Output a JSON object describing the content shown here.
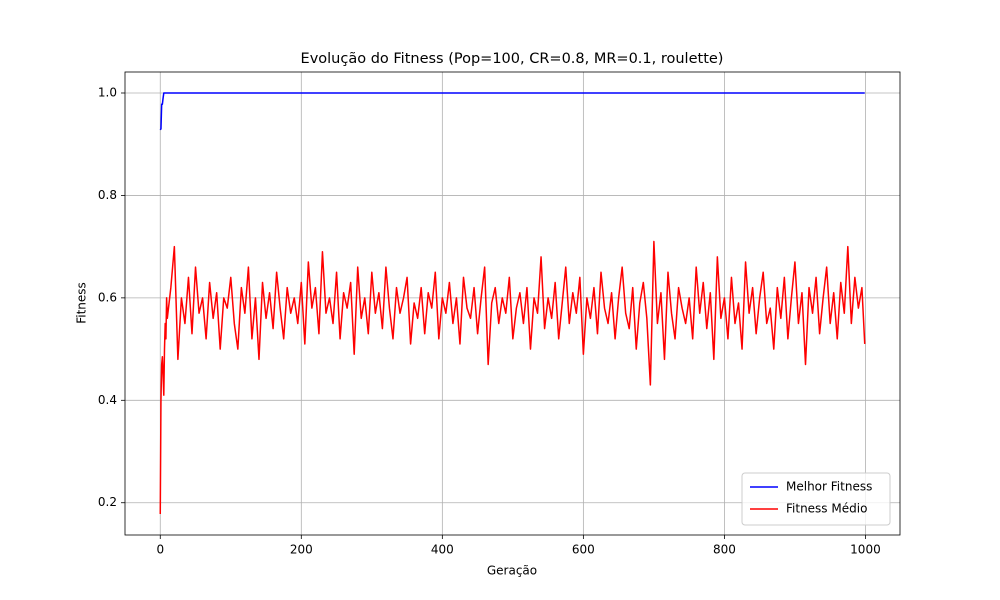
{
  "chart_data": {
    "type": "line",
    "title": "Evolução do Fitness (Pop=100, CR=0.8, MR=0.1, roulette)",
    "xlabel": "Geração",
    "ylabel": "Fitness",
    "xlim": [
      -50,
      1049
    ],
    "ylim": [
      0.137,
      1.041
    ],
    "xticks": [
      0,
      200,
      400,
      600,
      800,
      1000
    ],
    "yticks": [
      0.2,
      0.4,
      0.6,
      0.8,
      {
        "value": 1,
        "label": "1.0"
      }
    ],
    "grid": true,
    "legend": "lower right",
    "series": [
      {
        "name": "Melhor Fitness",
        "color": "#0000ff",
        "x": [
          0,
          1,
          2,
          3,
          4,
          5,
          6,
          999
        ],
        "values": [
          0.928,
          0.93,
          0.978,
          0.978,
          0.99,
          1,
          1,
          1
        ]
      },
      {
        "name": "Fitness Médio",
        "color": "#ff0000",
        "x": [
          0,
          1,
          2,
          3,
          4,
          5,
          6,
          7,
          8,
          9,
          10,
          15,
          20,
          25,
          30,
          35,
          40,
          45,
          50,
          55,
          60,
          65,
          70,
          75,
          80,
          85,
          90,
          95,
          100,
          105,
          110,
          115,
          120,
          125,
          130,
          135,
          140,
          145,
          150,
          155,
          160,
          165,
          170,
          175,
          180,
          185,
          190,
          195,
          200,
          205,
          210,
          215,
          220,
          225,
          230,
          235,
          240,
          245,
          250,
          255,
          260,
          265,
          270,
          275,
          280,
          285,
          290,
          295,
          300,
          305,
          310,
          315,
          320,
          325,
          330,
          335,
          340,
          345,
          350,
          355,
          360,
          365,
          370,
          375,
          380,
          385,
          390,
          395,
          400,
          405,
          410,
          415,
          420,
          425,
          430,
          435,
          440,
          445,
          450,
          455,
          460,
          465,
          470,
          475,
          480,
          485,
          490,
          495,
          500,
          505,
          510,
          515,
          520,
          525,
          530,
          535,
          540,
          545,
          550,
          555,
          560,
          565,
          570,
          575,
          580,
          585,
          590,
          595,
          600,
          605,
          610,
          615,
          620,
          625,
          630,
          635,
          640,
          645,
          650,
          655,
          660,
          665,
          670,
          675,
          680,
          685,
          690,
          695,
          700,
          705,
          710,
          715,
          720,
          725,
          730,
          735,
          740,
          745,
          750,
          755,
          760,
          765,
          770,
          775,
          780,
          785,
          790,
          795,
          800,
          805,
          810,
          815,
          820,
          825,
          830,
          835,
          840,
          845,
          850,
          855,
          860,
          865,
          870,
          875,
          880,
          885,
          890,
          895,
          900,
          905,
          910,
          915,
          920,
          925,
          930,
          935,
          940,
          945,
          950,
          955,
          960,
          965,
          970,
          975,
          980,
          985,
          990,
          995,
          999
        ],
        "values": [
          0.178,
          0.4,
          0.47,
          0.485,
          0.45,
          0.41,
          0.5,
          0.55,
          0.52,
          0.6,
          0.56,
          0.62,
          0.7,
          0.48,
          0.6,
          0.55,
          0.64,
          0.53,
          0.66,
          0.57,
          0.6,
          0.52,
          0.63,
          0.56,
          0.61,
          0.5,
          0.6,
          0.58,
          0.64,
          0.55,
          0.5,
          0.62,
          0.57,
          0.66,
          0.52,
          0.6,
          0.48,
          0.63,
          0.56,
          0.61,
          0.54,
          0.65,
          0.58,
          0.52,
          0.62,
          0.57,
          0.6,
          0.55,
          0.63,
          0.51,
          0.67,
          0.58,
          0.62,
          0.53,
          0.69,
          0.57,
          0.6,
          0.55,
          0.65,
          0.52,
          0.61,
          0.58,
          0.63,
          0.49,
          0.66,
          0.56,
          0.6,
          0.53,
          0.65,
          0.57,
          0.61,
          0.54,
          0.66,
          0.58,
          0.52,
          0.62,
          0.57,
          0.6,
          0.64,
          0.51,
          0.59,
          0.56,
          0.62,
          0.53,
          0.61,
          0.58,
          0.65,
          0.52,
          0.6,
          0.57,
          0.63,
          0.55,
          0.6,
          0.51,
          0.64,
          0.58,
          0.56,
          0.62,
          0.53,
          0.6,
          0.66,
          0.47,
          0.59,
          0.62,
          0.55,
          0.6,
          0.57,
          0.64,
          0.52,
          0.58,
          0.61,
          0.55,
          0.62,
          0.5,
          0.6,
          0.57,
          0.68,
          0.54,
          0.6,
          0.56,
          0.63,
          0.52,
          0.59,
          0.66,
          0.55,
          0.61,
          0.57,
          0.64,
          0.49,
          0.6,
          0.56,
          0.62,
          0.53,
          0.65,
          0.58,
          0.55,
          0.61,
          0.52,
          0.6,
          0.66,
          0.57,
          0.54,
          0.62,
          0.5,
          0.59,
          0.63,
          0.56,
          0.43,
          0.71,
          0.55,
          0.61,
          0.48,
          0.65,
          0.57,
          0.52,
          0.62,
          0.58,
          0.55,
          0.6,
          0.52,
          0.66,
          0.57,
          0.63,
          0.54,
          0.61,
          0.48,
          0.68,
          0.56,
          0.6,
          0.52,
          0.64,
          0.55,
          0.59,
          0.5,
          0.67,
          0.57,
          0.62,
          0.53,
          0.6,
          0.65,
          0.55,
          0.58,
          0.5,
          0.62,
          0.56,
          0.64,
          0.52,
          0.6,
          0.67,
          0.55,
          0.61,
          0.47,
          0.62,
          0.57,
          0.64,
          0.53,
          0.6,
          0.66,
          0.55,
          0.61,
          0.52,
          0.63,
          0.57,
          0.7,
          0.55,
          0.64,
          0.58,
          0.62,
          0.51
        ]
      }
    ]
  }
}
